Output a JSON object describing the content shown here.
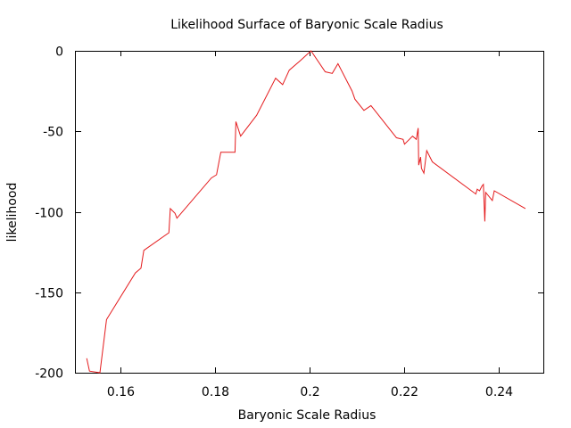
{
  "chart_data": {
    "type": "line",
    "title": "Likelihood Surface of Baryonic Scale Radius",
    "xlabel": "Baryonic Scale Radius",
    "ylabel": "likelihood",
    "xlim": [
      0.1505,
      0.2495
    ],
    "ylim": [
      -200,
      0
    ],
    "xticks": [
      0.16,
      0.18,
      0.2,
      0.22,
      0.24
    ],
    "xtick_labels": [
      "0.16",
      "0.18",
      "0.2",
      "0.22",
      "0.24"
    ],
    "yticks": [
      0,
      -50,
      -100,
      -150,
      -200
    ],
    "ytick_labels": [
      "0",
      "-50",
      "-100",
      "-150",
      "-200"
    ],
    "grid": false,
    "legend": "none",
    "series": [
      {
        "color": "#e41a1c",
        "x": [
          0.1528,
          0.1534,
          0.1556,
          0.157,
          0.1631,
          0.1643,
          0.1649,
          0.1702,
          0.1705,
          0.1715,
          0.1719,
          0.1792,
          0.1803,
          0.1812,
          0.1842,
          0.1844,
          0.1854,
          0.1888,
          0.1928,
          0.1943,
          0.1957,
          0.1981,
          0.2003,
          0.2033,
          0.2048,
          0.206,
          0.209,
          0.2096,
          0.2115,
          0.213,
          0.2184,
          0.2198,
          0.2201,
          0.2218,
          0.2226,
          0.223,
          0.2231,
          0.2235,
          0.2237,
          0.2242,
          0.2248,
          0.226,
          0.2352,
          0.2355,
          0.236,
          0.2365,
          0.2368,
          0.2371,
          0.2373,
          0.2387,
          0.2391,
          0.2457
        ],
        "y": [
          -191,
          -199,
          -207,
          -167,
          -138,
          -135,
          -124,
          -113,
          -98,
          -101,
          -104,
          -79,
          -77,
          -63,
          -63,
          -44,
          -53,
          -40,
          -17,
          -21,
          -12,
          -6,
          0,
          -13,
          -14,
          -8,
          -25,
          -30,
          -37,
          -34,
          -54,
          -55,
          -58,
          -53,
          -55,
          -48,
          -71,
          -66,
          -73,
          -76,
          -62,
          -69,
          -89,
          -86,
          -87,
          -84,
          -83,
          -106,
          -88,
          -93,
          -87,
          -98
        ]
      }
    ]
  }
}
